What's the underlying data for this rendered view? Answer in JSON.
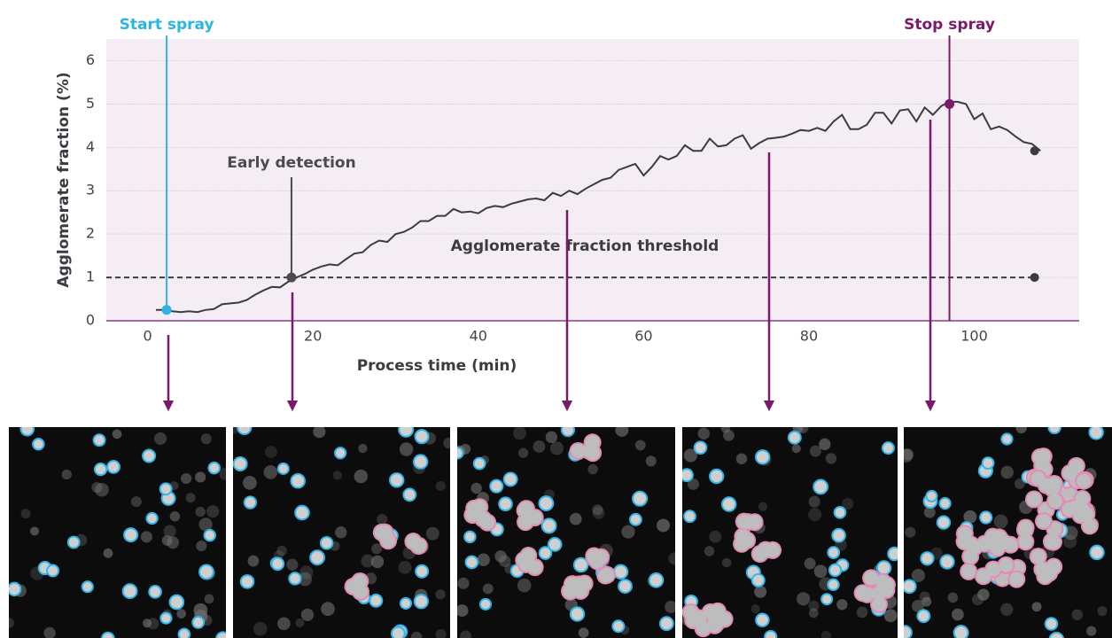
{
  "chart_data": {
    "type": "line",
    "xlabel": "Process time (min)",
    "ylabel": "Agglomerate fraction (%)",
    "x": [
      1,
      2,
      3,
      4,
      5,
      6,
      7,
      8,
      9,
      10,
      11,
      12,
      13,
      14,
      15,
      16,
      17,
      18,
      19,
      20,
      21,
      22,
      23,
      24,
      25,
      26,
      27,
      28,
      29,
      30,
      31,
      32,
      33,
      34,
      35,
      36,
      37,
      38,
      39,
      40,
      41,
      42,
      43,
      44,
      45,
      46,
      47,
      48,
      49,
      50,
      51,
      52,
      53,
      54,
      55,
      56,
      57,
      58,
      59,
      60,
      61,
      62,
      63,
      64,
      65,
      66,
      67,
      68,
      69,
      70,
      71,
      72,
      73,
      74,
      75,
      76,
      77,
      78,
      79,
      80,
      81,
      82,
      83,
      84,
      85,
      86,
      87,
      88,
      89,
      90,
      91,
      92,
      93,
      94,
      95,
      96,
      97,
      98,
      99,
      100,
      101,
      102,
      103,
      104,
      105,
      106,
      107,
      108
    ],
    "series": [
      {
        "color": "#3b3b42",
        "values": [
          0.25,
          0.25,
          0.22,
          0.2,
          0.22,
          0.2,
          0.25,
          0.27,
          0.38,
          0.4,
          0.42,
          0.48,
          0.6,
          0.7,
          0.78,
          0.77,
          0.9,
          1.0,
          1.08,
          1.18,
          1.25,
          1.3,
          1.28,
          1.42,
          1.55,
          1.58,
          1.75,
          1.85,
          1.82,
          2.0,
          2.05,
          2.15,
          2.3,
          2.3,
          2.42,
          2.42,
          2.58,
          2.5,
          2.52,
          2.48,
          2.6,
          2.65,
          2.62,
          2.7,
          2.75,
          2.8,
          2.82,
          2.78,
          2.95,
          2.88,
          3.0,
          2.92,
          3.05,
          3.15,
          3.25,
          3.3,
          3.48,
          3.55,
          3.62,
          3.35,
          3.55,
          3.8,
          3.72,
          3.8,
          4.05,
          3.92,
          3.92,
          4.2,
          4.02,
          4.05,
          4.2,
          4.28,
          3.97,
          4.1,
          4.2,
          4.22,
          4.25,
          4.32,
          4.4,
          4.38,
          4.45,
          4.38,
          4.6,
          4.75,
          4.42,
          4.42,
          4.52,
          4.8,
          4.8,
          4.55,
          4.85,
          4.88,
          4.6,
          4.92,
          4.75,
          4.95,
          5.05,
          5.05,
          5.0,
          4.65,
          4.78,
          4.42,
          4.48,
          4.4,
          4.25,
          4.12,
          4.08,
          3.92
        ]
      }
    ],
    "xlim": [
      -5,
      112.7
    ],
    "ylim": [
      0,
      6.5
    ],
    "xticks": [
      0,
      20,
      40,
      60,
      80,
      100
    ],
    "yticks": [
      0,
      1,
      2,
      3,
      4,
      5,
      6
    ],
    "grid": true,
    "threshold": {
      "label": "Agglomerate fraction threshold",
      "value": 1,
      "end": 107.3,
      "color": "#3b3b42"
    },
    "annotations": [
      {
        "label": "Start spray",
        "x": 2.3,
        "y": 0.25,
        "color": "#2bb4e4"
      },
      {
        "label": "Early detection",
        "x": 17.4,
        "y": 1.0,
        "color": "#4a4a50"
      },
      {
        "label": "Stop spray",
        "x": 97,
        "y": 5.0,
        "color": "#7b1a6b"
      }
    ],
    "end_point": {
      "x": 107.3,
      "y": 3.92
    }
  }
}
